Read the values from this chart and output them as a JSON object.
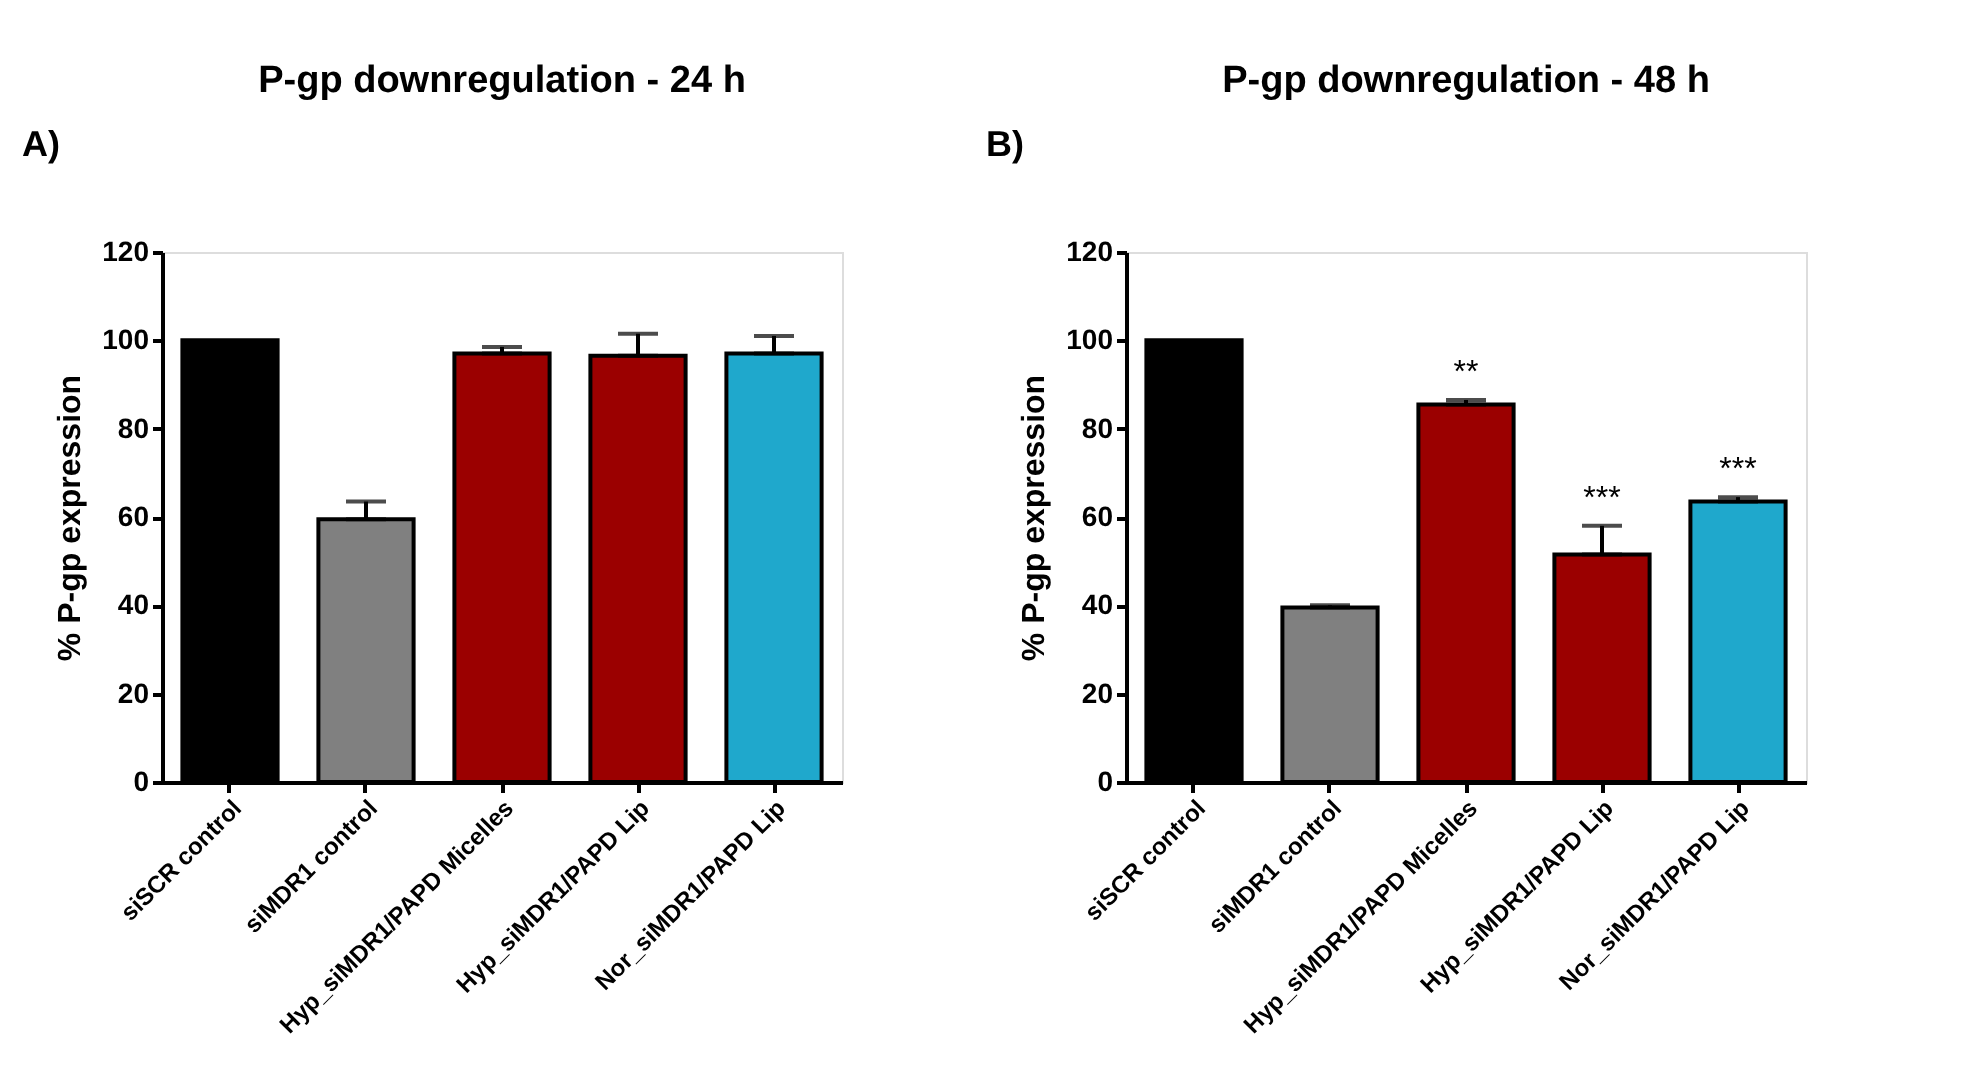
{
  "chart_data": [
    {
      "type": "bar",
      "title": "P-gp downregulation - 24 h",
      "ylabel": "% P-gp expression",
      "categories": [
        "siSCR control",
        "siMDR1 control",
        "Hyp_siMDR1/PAPD Micelles",
        "Hyp_siMDR1/PAPD Lip",
        "Nor_siMDR1/PAPD Lip"
      ],
      "values": [
        100,
        59.5,
        97,
        96.5,
        97
      ],
      "errors": [
        null,
        [
          59.5,
          63.5
        ],
        [
          97,
          98.5
        ],
        [
          96.5,
          101.5
        ],
        [
          97,
          101
        ]
      ],
      "colors": [
        "#000000",
        "#808080",
        "#9b0000",
        "#9b0000",
        "#1fa8cc"
      ],
      "ylim": [
        0,
        120
      ],
      "yticks": [
        0,
        20,
        40,
        60,
        80,
        100,
        120
      ],
      "grid": false,
      "annotations": [
        "A)"
      ]
    },
    {
      "type": "bar",
      "title": "P-gp downregulation - 48 h",
      "ylabel": "% P-gp expression",
      "categories": [
        "siSCR control",
        "siMDR1 control",
        "Hyp_siMDR1/PAPD Micelles",
        "Hyp_siMDR1/PAPD Lip",
        "Nor_siMDR1/PAPD Lip"
      ],
      "values": [
        100,
        39.5,
        85.5,
        51.5,
        63.5
      ],
      "errors": [
        null,
        [
          39.5,
          40
        ],
        [
          85.5,
          86.5
        ],
        [
          51.5,
          58
        ],
        [
          63.5,
          64.5
        ]
      ],
      "colors": [
        "#000000",
        "#808080",
        "#9b0000",
        "#9b0000",
        "#1fa8cc"
      ],
      "ylim": [
        0,
        120
      ],
      "yticks": [
        0,
        20,
        40,
        60,
        80,
        100,
        120
      ],
      "grid": false,
      "annotations": [
        "B)",
        {
          "text": "**",
          "x": "Hyp_siMDR1/PAPD Micelles",
          "y": 86.5
        },
        {
          "text": "***",
          "x": "Hyp_siMDR1/PAPD Lip",
          "y": 58
        },
        {
          "text": "***",
          "x": "Nor_siMDR1/PAPD Lip",
          "y": 64.5
        }
      ]
    }
  ]
}
